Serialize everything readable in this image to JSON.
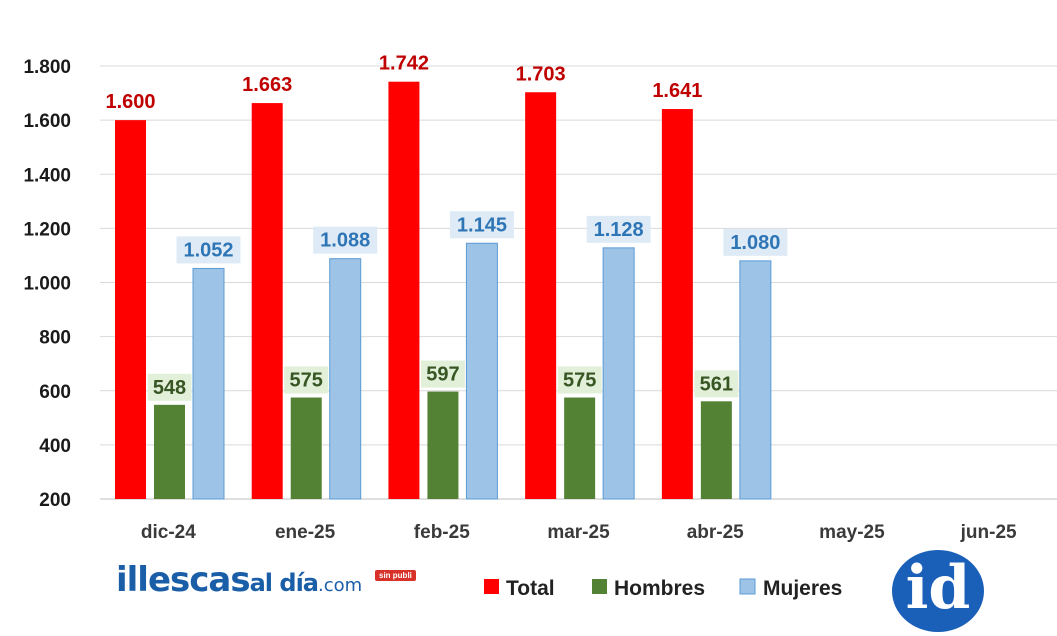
{
  "chart_data": {
    "type": "bar",
    "categories": [
      "dic-24",
      "ene-25",
      "feb-25",
      "mar-25",
      "abr-25",
      "may-25",
      "jun-25"
    ],
    "series": [
      {
        "name": "Total",
        "values": [
          1600,
          1663,
          1742,
          1703,
          1641,
          null,
          null
        ],
        "labels": [
          "1.600",
          "1.663",
          "1.742",
          "1.703",
          "1.641",
          "",
          ""
        ]
      },
      {
        "name": "Hombres",
        "values": [
          548,
          575,
          597,
          575,
          561,
          null,
          null
        ],
        "labels": [
          "548",
          "575",
          "597",
          "575",
          "561",
          "",
          ""
        ]
      },
      {
        "name": "Mujeres",
        "values": [
          1052,
          1088,
          1145,
          1128,
          1080,
          null,
          null
        ],
        "labels": [
          "1.052",
          "1.088",
          "1.145",
          "1.128",
          "1.080",
          "",
          ""
        ]
      }
    ],
    "yticks": [
      "200",
      "400",
      "600",
      "800",
      "1.000",
      "1.200",
      "1.400",
      "1.600",
      "1.800"
    ],
    "ylim": [
      200,
      1800
    ],
    "grid": true,
    "legend": "bottom",
    "colors": {
      "Total": "#ff0000",
      "Hombres": "#548235",
      "Mujeres": "#9dc3e6"
    },
    "label_colors": {
      "Total": "#c00000",
      "Hombres": "#375623",
      "Mujeres": "#2e75b6"
    },
    "label_bg": {
      "Hombres": "#e2efd9",
      "Mujeres": "#deebf7"
    }
  },
  "brand": {
    "part1": "illescas",
    "part2": "al día",
    "part3": ".com",
    "tag": "sin publi"
  },
  "logo": {
    "text": "id"
  }
}
